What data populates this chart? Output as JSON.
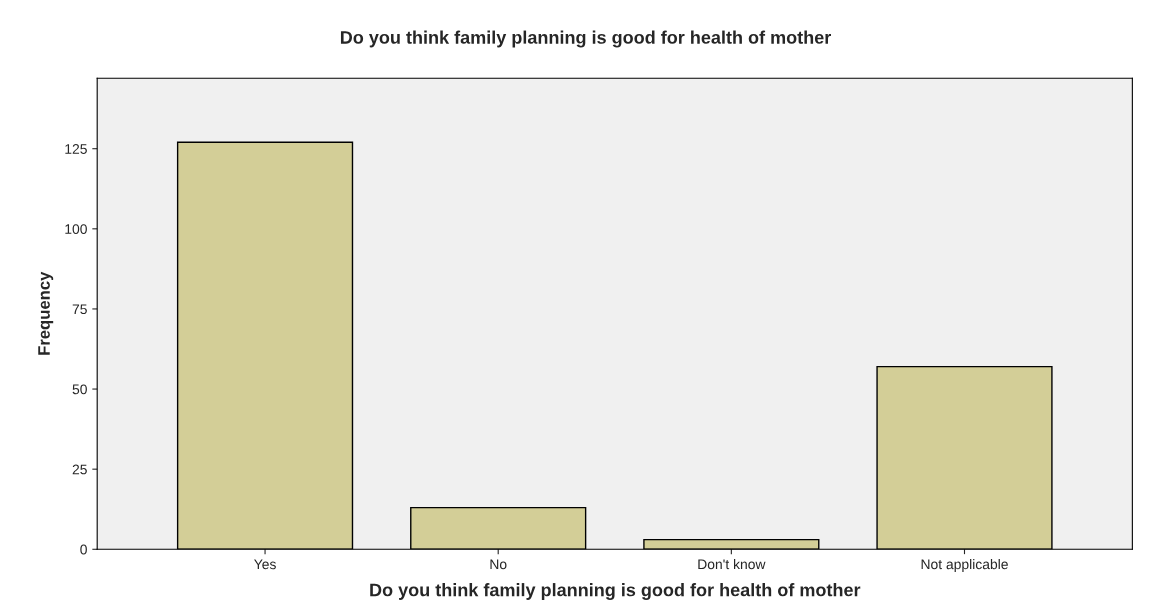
{
  "chart_data": {
    "type": "bar",
    "title": "Do you think family planning is good for health of mother",
    "xlabel": "Do you think family planning is good for health of mother",
    "ylabel": "Frequency",
    "categories": [
      "Yes",
      "No",
      "Don't know",
      "Not applicable"
    ],
    "values": [
      127,
      13,
      3,
      57
    ],
    "color": "#d3ce97",
    "ylim": [
      0,
      147
    ],
    "yticks": [
      0,
      25,
      50,
      75,
      100,
      125
    ],
    "grid": false,
    "legend": false
  }
}
